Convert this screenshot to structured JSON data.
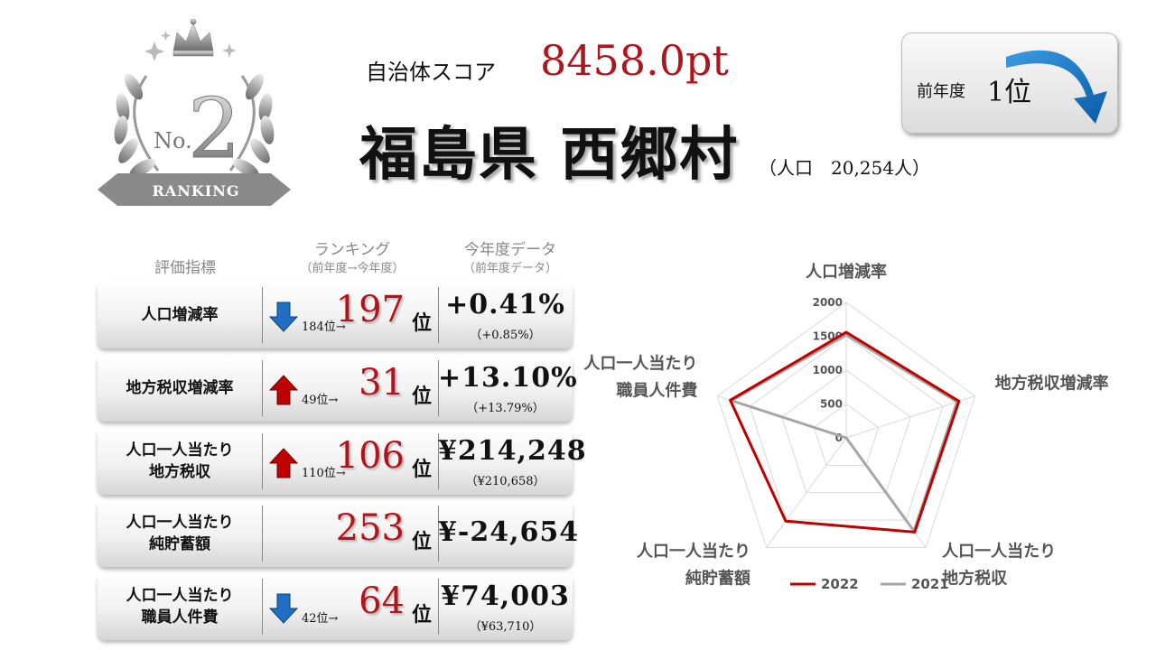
{
  "badge": {
    "number": "2",
    "prefix": "No.",
    "ribbon": "RANKING"
  },
  "header": {
    "score_label": "自治体スコア",
    "score_value": "8458.0pt",
    "city": "福島県 西郷村",
    "population": "（人口　20,254人）"
  },
  "previous": {
    "label": "前年度",
    "value": "1位"
  },
  "table": {
    "headers": {
      "indicator": "評価指標",
      "ranking": "ランキング",
      "ranking_sub": "（前年度→今年度）",
      "data": "今年度データ",
      "data_sub": "（前年度データ）"
    },
    "rows": [
      {
        "label1": "人口増減率",
        "label2": "",
        "trend": "down",
        "prev": "184位→",
        "rank": "197",
        "unit": "位",
        "value": "+0.41%",
        "sub": "（+0.85%）"
      },
      {
        "label1": "地方税収増減率",
        "label2": "",
        "trend": "up",
        "prev": "49位→",
        "rank": "31",
        "unit": "位",
        "value": "+13.10%",
        "sub": "（+13.79%）"
      },
      {
        "label1": "人口一人当たり",
        "label2": "地方税収",
        "trend": "up",
        "prev": "110位→",
        "rank": "106",
        "unit": "位",
        "value": "¥214,248",
        "sub": "（¥210,658）"
      },
      {
        "label1": "人口一人当たり",
        "label2": "純貯蓄額",
        "trend": "none",
        "prev": "",
        "rank": "253",
        "unit": "位",
        "value": "¥-24,654",
        "sub": ""
      },
      {
        "label1": "人口一人当たり",
        "label2": "職員人件費",
        "trend": "down",
        "prev": "42位→",
        "rank": "64",
        "unit": "位",
        "value": "¥74,003",
        "sub": "（¥63,710）"
      }
    ]
  },
  "colors": {
    "accent": "#b0141c",
    "up": "#c00000",
    "down": "#1f6fc5",
    "series2022": "#c00000",
    "series2021": "#a6a6a6"
  },
  "chart_data": {
    "type": "radar",
    "categories": [
      [
        "人口増減率"
      ],
      [
        "地方税収増減率"
      ],
      [
        "人口一人当たり",
        "地方税収"
      ],
      [
        "人口一人当たり",
        "純貯蓄額"
      ],
      [
        "人口一人当たり",
        "職員人件費"
      ]
    ],
    "ticks": [
      "0",
      "500",
      "1000",
      "1500",
      "2000"
    ],
    "rmax": 2000,
    "series": [
      {
        "name": "2022",
        "values": [
          1560,
          1750,
          1720,
          1520,
          1800
        ]
      },
      {
        "name": "2021",
        "values": [
          1520,
          1720,
          1700,
          0,
          1780
        ]
      }
    ],
    "legend": "bottom"
  }
}
